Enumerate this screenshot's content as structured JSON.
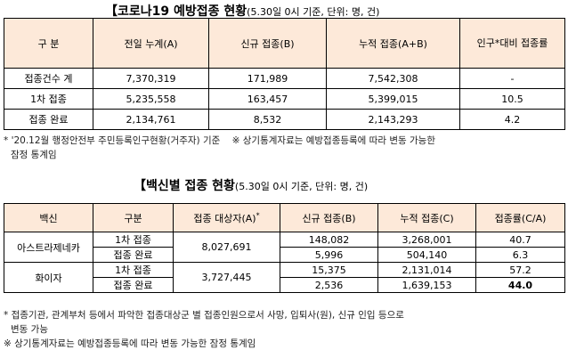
{
  "section1": {
    "title": "【코로나19 예방접종 현황",
    "subtitle": "(5.30일 0시 기준, 단위: 명, 건)",
    "headers": [
      "구 분",
      "전일 누계(A)",
      "신규 접종(B)",
      "누적 접종(A+B)",
      "인구*대비 접종률"
    ],
    "rows": [
      {
        "label": "접종건수 계",
        "prev": "7,370,319",
        "new": "171,989",
        "cum": "7,542,308",
        "rate": "-"
      },
      {
        "label": "1차 접종",
        "prev": "5,235,558",
        "new": "163,457",
        "cum": "5,399,015",
        "rate": "10.5"
      },
      {
        "label": "접종 완료",
        "prev": "2,134,761",
        "new": "8,532",
        "cum": "2,143,293",
        "rate": "4.2"
      }
    ],
    "note_line1": "* '20.12월 행정안전부 주민등록인구현황(거주자) 기준    ※ 상기통계자료는 예방접종등록에 따라 변동 가능한",
    "note_line2": "잠정 통계임"
  },
  "section2": {
    "title": "【백신별 접종 현황",
    "subtitle": "(5.30일 0시 기준, 단위: 명, 건)",
    "headers": [
      "백신",
      "구분",
      "접종 대상자(A)",
      "신규 접종(B)",
      "누적 접종(C)",
      "접종률(C/A)"
    ],
    "header_mark": "*",
    "vaccines": [
      {
        "name": "아스트라제네카",
        "target": "8,027,691",
        "rows": [
          {
            "type": "1차 접종",
            "new": "148,082",
            "cum": "3,268,001",
            "rate": "40.7"
          },
          {
            "type": "접종 완료",
            "new": "5,996",
            "cum": "504,140",
            "rate": "6.3"
          }
        ]
      },
      {
        "name": "화이자",
        "target": "3,727,445",
        "rows": [
          {
            "type": "1차 접종",
            "new": "15,375",
            "cum": "2,131,014",
            "rate": "57.2"
          },
          {
            "type": "접종 완료",
            "new": "2,536",
            "cum": "1,639,153",
            "rate": "44.0"
          }
        ]
      }
    ],
    "note_line1": "* 접종기관, 관계부처 등에서 파악한 접종대상군 별 접종인원으로서 사망, 입퇴사(원), 신규 인입 등으로",
    "note_line2": "변동 가능",
    "note_line3": "※ 상기통계자료는 예방접종등록에 따라 변동 가능한 잠정 통계임"
  }
}
